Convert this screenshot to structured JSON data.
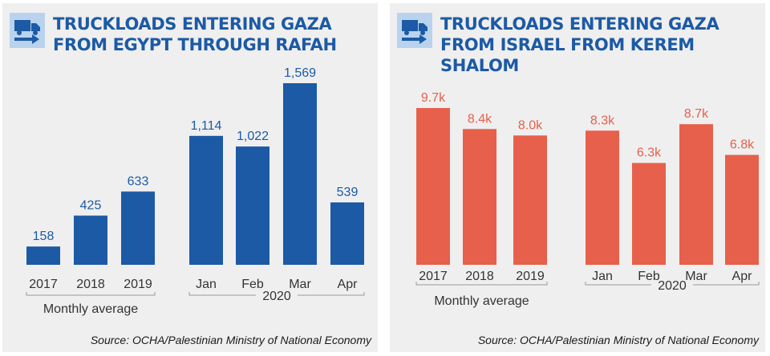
{
  "colors": {
    "blue": "#1c5aa5",
    "orange": "#e7604b",
    "text": "#333333",
    "icon_bg": "#b9d3ee"
  },
  "icons": {
    "truck": "truck-icon"
  },
  "chart_data": [
    {
      "type": "bar",
      "title": "TRUCKLOADS ENTERING GAZA FROM EGYPT THROUGH RAFAH",
      "categories": [
        "2017",
        "2018",
        "2019",
        "Jan",
        "Feb",
        "Mar",
        "Apr"
      ],
      "values": [
        158,
        425,
        633,
        1114,
        1022,
        1569,
        539
      ],
      "value_labels": [
        "158",
        "425",
        "633",
        "1,114",
        "1,022",
        "1,569",
        "539"
      ],
      "groups": [
        {
          "label": "Monthly average",
          "categories": [
            "2017",
            "2018",
            "2019"
          ]
        },
        {
          "label": "2020",
          "categories": [
            "Jan",
            "Feb",
            "Mar",
            "Apr"
          ]
        }
      ],
      "ylim": [
        0,
        1569
      ],
      "grid": false,
      "color": "#1c5aa5",
      "source": "Source: OCHA/Palestinian Ministry of National Economy"
    },
    {
      "type": "bar",
      "title": "TRUCKLOADS ENTERING GAZA FROM ISRAEL FROM KEREM SHALOM",
      "categories": [
        "2017",
        "2018",
        "2019",
        "Jan",
        "Feb",
        "Mar",
        "Apr"
      ],
      "values": [
        9.7,
        8.4,
        8.0,
        8.3,
        6.3,
        8.7,
        6.8
      ],
      "value_labels": [
        "9.7k",
        "8.4k",
        "8.0k",
        "8.3k",
        "6.3k",
        "8.7k",
        "6.8k"
      ],
      "unit": "k",
      "groups": [
        {
          "label": "Monthly average",
          "categories": [
            "2017",
            "2018",
            "2019"
          ]
        },
        {
          "label": "2020",
          "categories": [
            "Jan",
            "Feb",
            "Mar",
            "Apr"
          ]
        }
      ],
      "ylim": [
        0,
        9.7
      ],
      "grid": false,
      "color": "#e7604b",
      "source": "Source: OCHA/Palestinian Ministry of National Economy"
    }
  ]
}
